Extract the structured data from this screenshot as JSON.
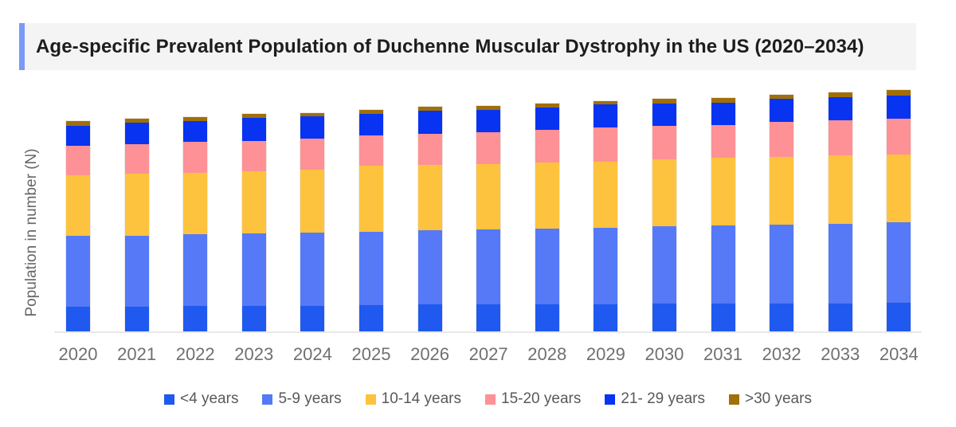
{
  "header": {
    "title": "Age-specific Prevalent Population of Duchenne Muscular Dystrophy in the US (2020–2034)",
    "accent_color": "#7b99f7",
    "background": "#f4f4f4"
  },
  "chart_data": {
    "type": "bar",
    "stacked": true,
    "title": "Age-specific Prevalent Population of Duchenne Muscular Dystrophy in the US (2020–2034)",
    "xlabel": "",
    "ylabel": "Population in number (N)",
    "y_axis_ticks": [],
    "grid": false,
    "legend_position": "bottom",
    "categories": [
      "2020",
      "2021",
      "2022",
      "2023",
      "2024",
      "2025",
      "2026",
      "2027",
      "2028",
      "2029",
      "2030",
      "2031",
      "2032",
      "2033",
      "2034"
    ],
    "series": [
      {
        "name": "<4 years",
        "color": "#2059ef",
        "values": [
          31,
          31,
          32,
          32,
          32,
          33,
          34,
          34,
          34,
          34,
          35,
          35,
          35,
          35,
          36
        ]
      },
      {
        "name": "5-9 years",
        "color": "#5579f7",
        "values": [
          89,
          89,
          90,
          91,
          92,
          92,
          93,
          94,
          95,
          96,
          97,
          98,
          99,
          100,
          101
        ]
      },
      {
        "name": "10-14 years",
        "color": "#fec33e",
        "values": [
          76,
          78,
          77,
          78,
          79,
          83,
          82,
          82,
          83,
          83,
          84,
          85,
          85,
          86,
          85
        ]
      },
      {
        "name": "15-20 years",
        "color": "#fd9196",
        "values": [
          37,
          37,
          39,
          38,
          39,
          38,
          39,
          40,
          41,
          43,
          42,
          41,
          44,
          44,
          45
        ]
      },
      {
        "name": "21- 29 years",
        "color": "#0733f1",
        "values": [
          25,
          27,
          26,
          29,
          28,
          27,
          29,
          28,
          28,
          29,
          28,
          28,
          29,
          29,
          29
        ]
      },
      {
        "name": ">30 years",
        "color": "#a16f07",
        "values": [
          6,
          5,
          5,
          5,
          4,
          5,
          5,
          5,
          5,
          4,
          6,
          6,
          5,
          6,
          7
        ]
      }
    ],
    "value_scale": "relative units (y-axis has no tick labels in source)"
  }
}
